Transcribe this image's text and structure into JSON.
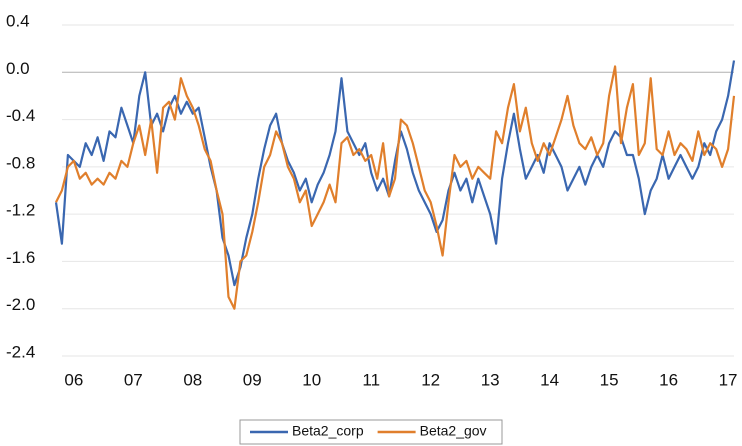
{
  "chart_data": {
    "type": "line",
    "x": [
      5.7,
      5.8,
      5.9,
      6.0,
      6.1,
      6.2,
      6.3,
      6.4,
      6.5,
      6.6,
      6.7,
      6.8,
      6.9,
      7.0,
      7.1,
      7.2,
      7.3,
      7.4,
      7.5,
      7.6,
      7.7,
      7.8,
      7.9,
      8.0,
      8.1,
      8.2,
      8.3,
      8.4,
      8.5,
      8.6,
      8.7,
      8.8,
      8.9,
      9.0,
      9.1,
      9.2,
      9.3,
      9.4,
      9.5,
      9.6,
      9.7,
      9.8,
      9.9,
      10.0,
      10.1,
      10.2,
      10.3,
      10.4,
      10.5,
      10.6,
      10.7,
      10.8,
      10.9,
      11.0,
      11.1,
      11.2,
      11.3,
      11.4,
      11.5,
      11.6,
      11.7,
      11.8,
      11.9,
      12.0,
      12.1,
      12.2,
      12.3,
      12.4,
      12.5,
      12.6,
      12.7,
      12.8,
      12.9,
      13.0,
      13.1,
      13.2,
      13.3,
      13.4,
      13.5,
      13.6,
      13.7,
      13.8,
      13.9,
      14.0,
      14.1,
      14.2,
      14.3,
      14.4,
      14.5,
      14.6,
      14.7,
      14.8,
      14.9,
      15.0,
      15.1,
      15.2,
      15.3,
      15.4,
      15.5,
      15.6,
      15.7,
      15.8,
      15.9,
      16.0,
      16.1,
      16.2,
      16.3,
      16.4,
      16.5,
      16.6,
      16.7,
      16.8,
      16.9,
      17.0,
      17.1
    ],
    "series": [
      {
        "name": "Beta2_corp",
        "color": "#3a67b0",
        "values": [
          -1.1,
          -1.45,
          -0.7,
          -0.75,
          -0.8,
          -0.6,
          -0.7,
          -0.55,
          -0.75,
          -0.5,
          -0.55,
          -0.3,
          -0.45,
          -0.6,
          -0.2,
          0.0,
          -0.45,
          -0.35,
          -0.5,
          -0.3,
          -0.2,
          -0.35,
          -0.25,
          -0.35,
          -0.3,
          -0.55,
          -0.8,
          -1.0,
          -1.4,
          -1.55,
          -1.8,
          -1.65,
          -1.4,
          -1.2,
          -0.9,
          -0.65,
          -0.45,
          -0.35,
          -0.6,
          -0.75,
          -0.85,
          -1.0,
          -0.9,
          -1.1,
          -0.95,
          -0.85,
          -0.7,
          -0.5,
          -0.05,
          -0.5,
          -0.6,
          -0.7,
          -0.6,
          -0.85,
          -1.0,
          -0.9,
          -1.05,
          -0.75,
          -0.5,
          -0.65,
          -0.85,
          -1.0,
          -1.1,
          -1.2,
          -1.35,
          -1.25,
          -1.0,
          -0.85,
          -1.0,
          -0.9,
          -1.1,
          -0.9,
          -1.05,
          -1.2,
          -1.45,
          -0.9,
          -0.6,
          -0.35,
          -0.65,
          -0.9,
          -0.8,
          -0.7,
          -0.85,
          -0.6,
          -0.7,
          -0.8,
          -1.0,
          -0.9,
          -0.8,
          -0.95,
          -0.8,
          -0.7,
          -0.8,
          -0.6,
          -0.5,
          -0.55,
          -0.7,
          -0.7,
          -0.9,
          -1.2,
          -1.0,
          -0.9,
          -0.7,
          -0.9,
          -0.8,
          -0.7,
          -0.8,
          -0.9,
          -0.8,
          -0.6,
          -0.7,
          -0.5,
          -0.4,
          -0.2,
          0.1
        ]
      },
      {
        "name": "Beta2_gov",
        "color": "#e07f2c",
        "values": [
          -1.1,
          -1.0,
          -0.8,
          -0.75,
          -0.9,
          -0.85,
          -0.95,
          -0.9,
          -0.95,
          -0.85,
          -0.9,
          -0.75,
          -0.8,
          -0.6,
          -0.45,
          -0.7,
          -0.4,
          -0.85,
          -0.3,
          -0.25,
          -0.4,
          -0.05,
          -0.2,
          -0.3,
          -0.45,
          -0.65,
          -0.75,
          -1.0,
          -1.2,
          -1.9,
          -2.0,
          -1.6,
          -1.55,
          -1.35,
          -1.1,
          -0.8,
          -0.7,
          -0.5,
          -0.6,
          -0.8,
          -0.9,
          -1.1,
          -1.0,
          -1.3,
          -1.2,
          -1.1,
          -0.95,
          -1.1,
          -0.6,
          -0.55,
          -0.7,
          -0.65,
          -0.75,
          -0.7,
          -0.9,
          -0.6,
          -1.05,
          -0.9,
          -0.4,
          -0.45,
          -0.6,
          -0.8,
          -1.0,
          -1.1,
          -1.3,
          -1.55,
          -1.1,
          -0.7,
          -0.8,
          -0.75,
          -0.9,
          -0.8,
          -0.85,
          -0.9,
          -0.5,
          -0.6,
          -0.3,
          -0.1,
          -0.5,
          -0.3,
          -0.6,
          -0.75,
          -0.6,
          -0.7,
          -0.55,
          -0.4,
          -0.2,
          -0.45,
          -0.6,
          -0.65,
          -0.55,
          -0.7,
          -0.6,
          -0.2,
          0.05,
          -0.6,
          -0.3,
          -0.1,
          -0.7,
          -0.6,
          -0.05,
          -0.65,
          -0.7,
          -0.5,
          -0.7,
          -0.6,
          -0.65,
          -0.75,
          -0.5,
          -0.7,
          -0.6,
          -0.65,
          -0.8,
          -0.65,
          -0.2
        ]
      }
    ],
    "xlim": [
      5.7,
      17.1
    ],
    "xticks": [
      {
        "value": 6,
        "label": "06"
      },
      {
        "value": 7,
        "label": "07"
      },
      {
        "value": 8,
        "label": "08"
      },
      {
        "value": 9,
        "label": "09"
      },
      10,
      11,
      12,
      13,
      14,
      15,
      16,
      17
    ],
    "ylim": [
      -2.4,
      0.4
    ],
    "yticks": [
      0.4,
      {
        "value": 0,
        "label": "0.0"
      },
      -0.4,
      -0.8,
      -1.2,
      -1.6,
      {
        "value": -2,
        "label": "-2.0"
      },
      -2.4
    ],
    "grid": true
  }
}
